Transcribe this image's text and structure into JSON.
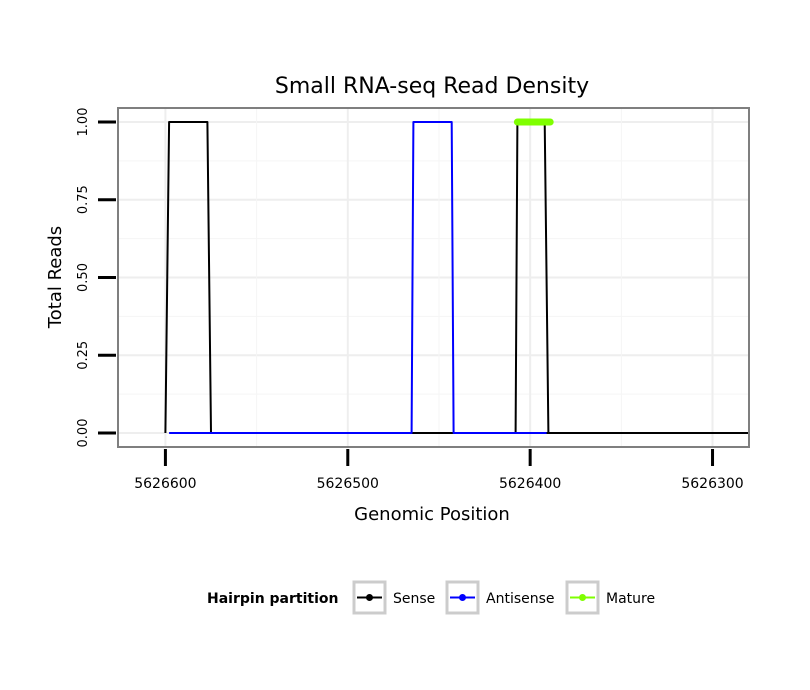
{
  "chart_data": {
    "type": "line",
    "title": "Small RNA-seq Read Density",
    "xlabel": "Genomic Position",
    "ylabel": "Total Reads",
    "x_reversed": true,
    "xlim": [
      5626626,
      5626280
    ],
    "ylim": [
      -0.045,
      1.045
    ],
    "xticks": [
      5626600,
      5626500,
      5626400,
      5626300
    ],
    "xtick_labels": [
      "5626600",
      "5626500",
      "5626400",
      "5626300"
    ],
    "yticks": [
      0,
      0.25,
      0.5,
      0.75,
      1.0
    ],
    "ytick_labels": [
      "0.00",
      "0.25",
      "0.50",
      "0.75",
      "1.00"
    ],
    "series": [
      {
        "name": "Sense",
        "color": "#000000",
        "x": [
          5626600,
          5626598,
          5626592,
          5626577,
          5626575,
          5626575,
          5626465,
          5626463,
          5626438,
          5626437,
          5626375,
          5626375,
          5626408,
          5626407,
          5626392,
          5626390,
          5626280
        ],
        "y": [
          0,
          1,
          1,
          1,
          0,
          0,
          0,
          0,
          0,
          0,
          0,
          0,
          0,
          1,
          1,
          0,
          0
        ]
      },
      {
        "name": "Antisense",
        "color": "#0000ff",
        "x": [
          5626598,
          5626576,
          5626465,
          5626464,
          5626443,
          5626442,
          5626408,
          5626391
        ],
        "y": [
          0,
          0,
          0,
          1,
          1,
          0,
          0,
          0
        ]
      },
      {
        "name": "Mature",
        "color": "#7fff00",
        "x": [
          5626407,
          5626389
        ],
        "y": [
          1,
          1
        ]
      }
    ],
    "legend": {
      "title": "Hairpin partition",
      "position": "bottom",
      "entries": [
        "Sense",
        "Antisense",
        "Mature"
      ]
    }
  }
}
